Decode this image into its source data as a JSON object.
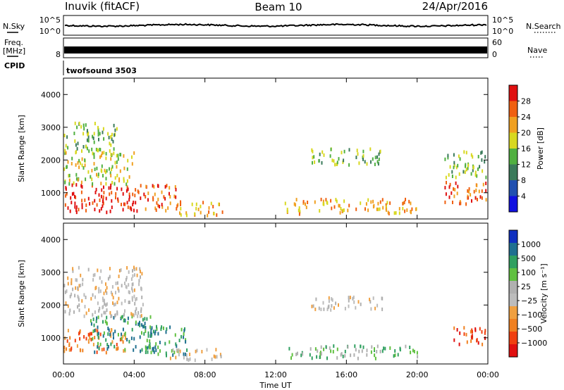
{
  "header": {
    "site": "Inuvik (fitACF)",
    "beam": "Beam 10",
    "date": "24/Apr/2016"
  },
  "noise_panel": {
    "left_label": "N.Sky",
    "right_label": "N.Search",
    "left_ticks": [
      "10^5",
      "10^0"
    ],
    "right_ticks": [
      "10^5",
      "10^0"
    ]
  },
  "freq_panel": {
    "left_label_1": "Freq.",
    "left_label_2": "[MHz]",
    "right_label": "Nave",
    "left_ticks": [
      "8"
    ],
    "right_ticks": [
      "60",
      "0"
    ]
  },
  "cpid_panel": {
    "label": "CPID",
    "value": "twofsound 3503"
  },
  "colors": {
    "power": [
      "#1010e0",
      "#2050b0",
      "#3a7a5a",
      "#50b040",
      "#d8d820",
      "#f0a020",
      "#f06010",
      "#e01010"
    ],
    "velocity": [
      "#e01010",
      "#f04010",
      "#f08020",
      "#f0a040",
      "#bcbcbc",
      "#b0b0b0",
      "#60c040",
      "#30a060",
      "#207090",
      "#1030c0"
    ]
  },
  "chart_data": [
    {
      "type": "heatmap",
      "title": "",
      "xlabel": "",
      "ylabel": "Slant Range [km]",
      "x_ticks": [
        "00:00",
        "04:00",
        "08:00",
        "12:00",
        "16:00",
        "20:00",
        "00:00"
      ],
      "xlim_hours": [
        0,
        24
      ],
      "ylim": [
        200,
        4500
      ],
      "y_ticks": [
        1000,
        2000,
        3000,
        4000
      ],
      "colorbar": {
        "label": "Power [dB]",
        "ticks": [
          "28",
          "24",
          "20",
          "16",
          "12",
          "8",
          "4"
        ],
        "range": [
          0,
          32
        ]
      },
      "regions": [
        {
          "t0": 0.0,
          "t1": 4.5,
          "r0": 450,
          "r1": 1300,
          "level": 28
        },
        {
          "t0": 0.0,
          "t1": 4.0,
          "r0": 1300,
          "r1": 2300,
          "level": 17
        },
        {
          "t0": 0.0,
          "t1": 3.0,
          "r0": 2300,
          "r1": 3200,
          "level": 11
        },
        {
          "t0": 4.5,
          "t1": 6.5,
          "r0": 500,
          "r1": 1300,
          "level": 22
        },
        {
          "t0": 6.5,
          "t1": 9.0,
          "r0": 350,
          "r1": 800,
          "level": 20
        },
        {
          "t0": 12.5,
          "t1": 20.0,
          "r0": 400,
          "r1": 850,
          "level": 18
        },
        {
          "t0": 14.0,
          "t1": 18.0,
          "r0": 1900,
          "r1": 2400,
          "level": 12
        },
        {
          "t0": 21.5,
          "t1": 24.0,
          "r0": 700,
          "r1": 1400,
          "level": 22
        },
        {
          "t0": 21.5,
          "t1": 24.0,
          "r0": 1500,
          "r1": 2300,
          "level": 12
        }
      ]
    },
    {
      "type": "heatmap",
      "title": "",
      "xlabel": "Time UT",
      "ylabel": "Slant Range [km]",
      "x_ticks": [
        "00:00",
        "04:00",
        "08:00",
        "12:00",
        "16:00",
        "20:00",
        "00:00"
      ],
      "xlim_hours": [
        0,
        24
      ],
      "ylim": [
        200,
        4500
      ],
      "y_ticks": [
        1000,
        2000,
        3000,
        4000
      ],
      "colorbar": {
        "label": "Velocity [m s⁻¹]",
        "ticks": [
          "1000",
          "500",
          "100",
          "25",
          "−25",
          "−100",
          "−500",
          "−1000"
        ]
      },
      "regions": [
        {
          "t0": 0.0,
          "t1": 3.5,
          "r0": 600,
          "r1": 1300,
          "level": -120
        },
        {
          "t0": 1.5,
          "t1": 5.0,
          "r0": 600,
          "r1": 1700,
          "level": 150
        },
        {
          "t0": 0.0,
          "t1": 4.5,
          "r0": 1700,
          "r1": 3200,
          "level": 0
        },
        {
          "t0": 4.5,
          "t1": 7.0,
          "r0": 500,
          "r1": 1400,
          "level": 150
        },
        {
          "t0": 6.0,
          "t1": 9.0,
          "r0": 350,
          "r1": 700,
          "level": 0
        },
        {
          "t0": 12.5,
          "t1": 20.0,
          "r0": 400,
          "r1": 800,
          "level": 80
        },
        {
          "t0": 14.0,
          "t1": 18.0,
          "r0": 1900,
          "r1": 2300,
          "level": 0
        },
        {
          "t0": 22.0,
          "t1": 24.0,
          "r0": 800,
          "r1": 1400,
          "level": -600
        }
      ]
    }
  ]
}
